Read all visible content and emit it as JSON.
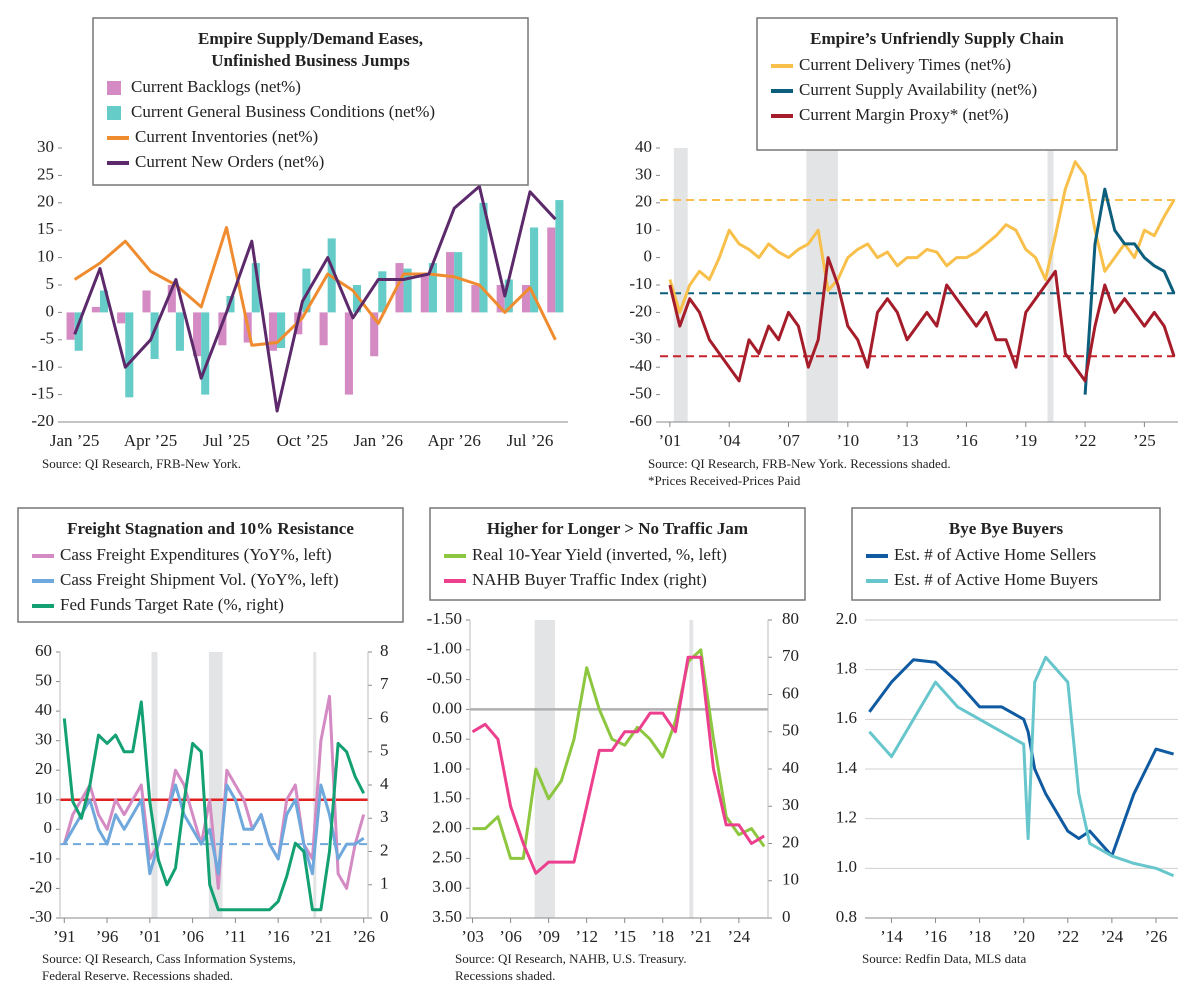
{
  "chart_data": [
    {
      "type": "combo",
      "title": [
        "Empire Supply/Demand Eases,",
        "Unfinished Business Jumps"
      ],
      "categories": [
        "Jan ’25",
        null,
        null,
        "Apr ’25",
        null,
        null,
        "Jul ’25",
        null,
        null,
        "Oct ’25",
        null,
        null,
        "Jan ’26",
        null,
        null,
        "Apr ’26",
        null,
        null,
        "Jul ’26",
        null
      ],
      "series": [
        {
          "name": "Current Backlogs (net%)",
          "mark": "bar",
          "color": "#d48bc4",
          "values": [
            -5,
            1,
            -2,
            4,
            5,
            -8,
            -6,
            -5.5,
            -7,
            -4,
            -6,
            -15,
            -8,
            9,
            7,
            11,
            5,
            5,
            5,
            15.5
          ]
        },
        {
          "name": "Current General Business Conditions (net%)",
          "mark": "bar",
          "color": "#66ccc8",
          "values": [
            -7,
            4,
            -15.5,
            -8.5,
            -7,
            -15,
            3,
            9,
            -6.5,
            8,
            13.5,
            5,
            7.5,
            8,
            9,
            11,
            20,
            6,
            15.5,
            20.5
          ]
        },
        {
          "name": "Current Inventories (net%)",
          "mark": "line",
          "color": "#f08c30",
          "values": [
            6,
            9,
            13,
            7.5,
            5,
            1,
            15.5,
            -6,
            -5.5,
            -1,
            7,
            4,
            -2,
            7,
            7,
            6.5,
            5,
            0,
            4.5,
            -5
          ]
        },
        {
          "name": "Current New Orders (net%)",
          "mark": "line",
          "color": "#5c2a6b",
          "values": [
            -4,
            8,
            -10,
            -5,
            6,
            -12,
            0,
            13,
            -18,
            2,
            10,
            -1,
            6,
            6,
            7,
            19,
            23,
            3,
            22,
            17
          ]
        }
      ],
      "ylim": [
        -20,
        30
      ],
      "yticks": [
        -20,
        -15,
        -10,
        -5,
        0,
        5,
        10,
        15,
        20,
        25,
        30
      ],
      "source": [
        "Source: QI Research, FRB-New York."
      ]
    },
    {
      "type": "line",
      "title": "Empire’s Unfriendly Supply Chain",
      "x": [
        2001,
        2001.5,
        2002,
        2002.5,
        2003,
        2003.5,
        2004,
        2004.5,
        2005,
        2005.5,
        2006,
        2006.5,
        2007,
        2007.5,
        2008,
        2008.5,
        2009,
        2009.5,
        2010,
        2010.5,
        2011,
        2011.5,
        2012,
        2012.5,
        2013,
        2013.5,
        2014,
        2014.5,
        2015,
        2015.5,
        2016,
        2016.5,
        2017,
        2017.5,
        2018,
        2018.5,
        2019,
        2019.5,
        2020,
        2020.5,
        2021,
        2021.5,
        2022,
        2022.5,
        2023,
        2023.5,
        2024,
        2024.5,
        2025,
        2025.5,
        2026,
        2026.5
      ],
      "series": [
        {
          "name": "Current Delivery Times (net%)",
          "mark": "line",
          "color": "#f8c04a",
          "values": [
            -8,
            -20,
            -10,
            -5,
            -8,
            0,
            10,
            5,
            3,
            0,
            5,
            2,
            0,
            3,
            5,
            10,
            -12,
            -8,
            0,
            3,
            5,
            0,
            2,
            -3,
            0,
            0,
            3,
            2,
            -3,
            0,
            0,
            2,
            5,
            8,
            12,
            10,
            3,
            0,
            -8,
            8,
            25,
            35,
            30,
            10,
            -5,
            0,
            5,
            0,
            10,
            8,
            15,
            21
          ]
        },
        {
          "name": "Current Supply Availability (net%)",
          "mark": "line",
          "color": "#0b5e7c",
          "values": [
            null,
            null,
            null,
            null,
            null,
            null,
            null,
            null,
            null,
            null,
            null,
            null,
            null,
            null,
            null,
            null,
            null,
            null,
            null,
            null,
            null,
            null,
            null,
            null,
            null,
            null,
            null,
            null,
            null,
            null,
            null,
            null,
            null,
            null,
            null,
            null,
            null,
            null,
            null,
            null,
            null,
            null,
            -50,
            5,
            25,
            10,
            5,
            5,
            0,
            -3,
            -5,
            -13
          ]
        },
        {
          "name": "Current Margin Proxy* (net%)",
          "mark": "line",
          "color": "#a51c2a",
          "values": [
            -10,
            -25,
            -15,
            -20,
            -30,
            -35,
            -40,
            -45,
            -30,
            -35,
            -25,
            -30,
            -20,
            -25,
            -40,
            -30,
            0,
            -10,
            -25,
            -30,
            -40,
            -20,
            -15,
            -20,
            -30,
            -25,
            -20,
            -25,
            -10,
            -15,
            -20,
            -25,
            -20,
            -30,
            -30,
            -40,
            -20,
            -15,
            -10,
            -5,
            -35,
            -40,
            -45,
            -25,
            -10,
            -20,
            -15,
            -20,
            -25,
            -20,
            -25,
            -36
          ]
        }
      ],
      "ref_lines": [
        {
          "value": 21,
          "color": "#f8c04a"
        },
        {
          "value": -13,
          "color": "#0b5e7c"
        },
        {
          "value": -36,
          "color": "#c8232c"
        }
      ],
      "shaded": [
        [
          2001.2,
          2001.9
        ],
        [
          2007.9,
          2009.5
        ],
        [
          2020.1,
          2020.4
        ]
      ],
      "xlim": [
        2000.5,
        2026.7
      ],
      "xticks": [
        {
          "value": 2001,
          "label": "’01"
        },
        {
          "value": 2004,
          "label": "’04"
        },
        {
          "value": 2007,
          "label": "’07"
        },
        {
          "value": 2010,
          "label": "’10"
        },
        {
          "value": 2013,
          "label": "’13"
        },
        {
          "value": 2016,
          "label": "’16"
        },
        {
          "value": 2019,
          "label": "’19"
        },
        {
          "value": 2022,
          "label": "’22"
        },
        {
          "value": 2025,
          "label": "’25"
        }
      ],
      "ylim": [
        -60,
        40
      ],
      "yticks": [
        -60,
        -50,
        -40,
        -30,
        -20,
        -10,
        0,
        10,
        20,
        30,
        40
      ],
      "source": [
        "Source: QI Research, FRB-New York. Recessions shaded.",
        "*Prices Received-Prices Paid"
      ]
    },
    {
      "type": "line",
      "title": "Freight Stagnation and 10% Resistance",
      "x": [
        1991,
        1992,
        1993,
        1994,
        1995,
        1996,
        1997,
        1998,
        1999,
        2000,
        2001,
        2002,
        2003,
        2004,
        2005,
        2006,
        2007,
        2008,
        2009,
        2010,
        2011,
        2012,
        2013,
        2014,
        2015,
        2016,
        2017,
        2018,
        2019,
        2020,
        2021,
        2022,
        2023,
        2024,
        2025,
        2026
      ],
      "series": [
        {
          "name": "Cass Freight Expenditures (YoY%, left)",
          "mark": "line",
          "color": "#d48bc4",
          "values": [
            -5,
            5,
            10,
            15,
            5,
            0,
            10,
            5,
            10,
            15,
            -10,
            -5,
            5,
            20,
            15,
            5,
            -5,
            10,
            -20,
            20,
            15,
            10,
            0,
            5,
            -5,
            -10,
            10,
            15,
            -5,
            -10,
            30,
            45,
            -15,
            -20,
            -5,
            5
          ]
        },
        {
          "name": "Cass Freight Shipment Vol. (YoY%, left)",
          "mark": "line",
          "color": "#6fa8dc",
          "values": [
            -5,
            0,
            5,
            10,
            0,
            -5,
            5,
            0,
            5,
            10,
            -15,
            -5,
            5,
            15,
            5,
            0,
            -5,
            0,
            -15,
            15,
            10,
            0,
            0,
            5,
            -5,
            -10,
            5,
            10,
            -5,
            -15,
            15,
            5,
            -10,
            -5,
            -5,
            -3
          ]
        },
        {
          "name": "Fed Funds Target Rate (%, right)",
          "mark": "line",
          "axis": "y2",
          "color": "#13a072",
          "values": [
            6,
            3.5,
            3,
            4,
            5.5,
            5.25,
            5.5,
            5,
            5,
            6.5,
            3.5,
            1.75,
            1,
            1.5,
            3.5,
            5.25,
            5,
            1,
            0.25,
            0.25,
            0.25,
            0.25,
            0.25,
            0.25,
            0.25,
            0.5,
            1.25,
            2.25,
            2,
            0.25,
            0.25,
            2,
            5.25,
            5,
            4.25,
            3.75
          ]
        }
      ],
      "ref_lines": [
        {
          "value": 10,
          "color": "#e02020",
          "solid": true
        },
        {
          "value": -5,
          "color": "#6fa8dc"
        }
      ],
      "shaded": [
        [
          2001.2,
          2001.9
        ],
        [
          2007.9,
          2009.5
        ],
        [
          2020.1,
          2020.4
        ]
      ],
      "xlim": [
        1990.5,
        2026.5
      ],
      "xticks": [
        {
          "value": 1991,
          "label": "’91"
        },
        {
          "value": 1996,
          "label": "’96"
        },
        {
          "value": 2001,
          "label": "’01"
        },
        {
          "value": 2006,
          "label": "’06"
        },
        {
          "value": 2011,
          "label": "’11"
        },
        {
          "value": 2016,
          "label": "’16"
        },
        {
          "value": 2021,
          "label": "’21"
        },
        {
          "value": 2026,
          "label": "’26"
        }
      ],
      "ylim": [
        -30,
        60
      ],
      "yticks": [
        -30,
        -20,
        -10,
        0,
        10,
        20,
        30,
        40,
        50,
        60
      ],
      "y2lim": [
        0,
        8
      ],
      "y2ticks": [
        0,
        1,
        2,
        3,
        4,
        5,
        6,
        7,
        8
      ],
      "source": [
        "Source: QI Research, Cass Information Systems,",
        "Federal Reserve. Recessions shaded."
      ]
    },
    {
      "type": "line",
      "title": "Higher for Longer > No Traffic Jam",
      "x": [
        2003,
        2004,
        2005,
        2006,
        2007,
        2008,
        2009,
        2010,
        2011,
        2012,
        2013,
        2014,
        2015,
        2016,
        2017,
        2018,
        2019,
        2020,
        2021,
        2022,
        2023,
        2024,
        2025,
        2026
      ],
      "series": [
        {
          "name": "Real 10-Year Yield (inverted, %, left)",
          "mark": "line",
          "color": "#8dc63f",
          "values": [
            2.0,
            2.0,
            1.8,
            2.5,
            2.5,
            1.0,
            1.5,
            1.2,
            0.5,
            -0.7,
            0.0,
            0.5,
            0.6,
            0.3,
            0.5,
            0.8,
            0.2,
            -0.8,
            -1.0,
            0.5,
            1.8,
            2.1,
            2.0,
            2.3
          ]
        },
        {
          "name": "NAHB Buyer Traffic Index (right)",
          "mark": "line",
          "axis": "y2",
          "color": "#ec3f8e",
          "values": [
            50,
            52,
            48,
            30,
            20,
            12,
            15,
            15,
            15,
            30,
            45,
            45,
            50,
            50,
            55,
            55,
            50,
            70,
            70,
            40,
            25,
            25,
            20,
            22
          ]
        }
      ],
      "ref_lines": [
        {
          "value": 0,
          "color": "#b0b0b0",
          "solid": true
        }
      ],
      "shaded": [
        [
          2007.9,
          2009.5
        ],
        [
          2020.1,
          2020.4
        ]
      ],
      "xlim": [
        2002.8,
        2026.3
      ],
      "xticks": [
        {
          "value": 2003,
          "label": "’03"
        },
        {
          "value": 2006,
          "label": "’06"
        },
        {
          "value": 2009,
          "label": "’09"
        },
        {
          "value": 2012,
          "label": "’12"
        },
        {
          "value": 2015,
          "label": "’15"
        },
        {
          "value": 2018,
          "label": "’18"
        },
        {
          "value": 2021,
          "label": "’21"
        },
        {
          "value": 2024,
          "label": "’24"
        }
      ],
      "ylim": [
        -1.5,
        3.5
      ],
      "y_inverted": true,
      "yticks": [
        {
          "value": -1.5,
          "label": "-1.50"
        },
        {
          "value": -1,
          "label": "-1.00"
        },
        {
          "value": -0.5,
          "label": "-0.50"
        },
        {
          "value": 0,
          "label": "0.00"
        },
        {
          "value": 0.5,
          "label": "0.50"
        },
        {
          "value": 1,
          "label": "1.00"
        },
        {
          "value": 1.5,
          "label": "1.50"
        },
        {
          "value": 2,
          "label": "2.00"
        },
        {
          "value": 2.5,
          "label": "2.50"
        },
        {
          "value": 3,
          "label": "3.00"
        },
        {
          "value": 3.5,
          "label": "3.50"
        }
      ],
      "y2lim": [
        0,
        80
      ],
      "y2ticks": [
        0,
        10,
        20,
        30,
        40,
        50,
        60,
        70,
        80
      ],
      "source": [
        "Source: QI Research, NAHB, U.S. Treasury.",
        "Recessions shaded."
      ]
    },
    {
      "type": "line",
      "title": "Bye Bye Buyers",
      "x": [
        2013,
        2014,
        2015,
        2016,
        2017,
        2018,
        2019,
        2020,
        2020.2,
        2020.5,
        2021,
        2022,
        2022.5,
        2023,
        2024,
        2025,
        2026,
        2026.8
      ],
      "series": [
        {
          "name": "Est. # of Active Home Sellers",
          "mark": "line",
          "color": "#0f5aa0",
          "values": [
            1.63,
            1.75,
            1.84,
            1.83,
            1.75,
            1.65,
            1.65,
            1.6,
            1.55,
            1.4,
            1.3,
            1.15,
            1.12,
            1.15,
            1.05,
            1.3,
            1.48,
            1.46
          ]
        },
        {
          "name": "Est. # of Active Home Buyers",
          "mark": "line",
          "color": "#66c6cc",
          "values": [
            1.55,
            1.45,
            1.6,
            1.75,
            1.65,
            1.6,
            1.55,
            1.5,
            1.12,
            1.75,
            1.85,
            1.75,
            1.3,
            1.1,
            1.05,
            1.02,
            1.0,
            0.97
          ]
        }
      ],
      "grid": true,
      "xlim": [
        2012.8,
        2027
      ],
      "xticks": [
        {
          "value": 2014,
          "label": "’14"
        },
        {
          "value": 2016,
          "label": "’16"
        },
        {
          "value": 2018,
          "label": "’18"
        },
        {
          "value": 2020,
          "label": "’20"
        },
        {
          "value": 2022,
          "label": "’22"
        },
        {
          "value": 2024,
          "label": "’24"
        },
        {
          "value": 2026,
          "label": "’26"
        }
      ],
      "ylim": [
        0.8,
        2.0
      ],
      "yticks": [
        0.8,
        {
          "value": 1,
          "label": "1.0"
        },
        1.2,
        1.4,
        1.6,
        1.8,
        {
          "value": 2,
          "label": "2.0"
        }
      ],
      "source": [
        "Source: Redfin Data, MLS data"
      ]
    }
  ]
}
